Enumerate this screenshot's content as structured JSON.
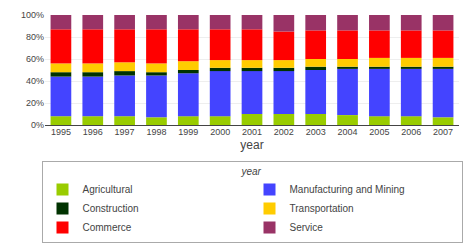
{
  "chart_data": {
    "type": "bar",
    "stacked": true,
    "xlabel": "year",
    "annotations": [
      {
        "text": "year"
      }
    ],
    "categories": [
      "1995",
      "1996",
      "1997",
      "1998",
      "1999",
      "2000",
      "2001",
      "2002",
      "2003",
      "2004",
      "2005",
      "2006",
      "2007"
    ],
    "series": [
      {
        "name": "Agricultural",
        "color": "#99cc00",
        "values": [
          8,
          8,
          8,
          7,
          8,
          8,
          10,
          10,
          10,
          9,
          8,
          8,
          7
        ]
      },
      {
        "name": "Manufacturing and Mining",
        "color": "#4444ff",
        "values": [
          36,
          36,
          37,
          38,
          39,
          41,
          39,
          39,
          40,
          42,
          43,
          43,
          44
        ]
      },
      {
        "name": "Construction",
        "color": "#003300",
        "values": [
          4,
          4,
          4,
          3,
          3,
          3,
          3,
          3,
          3,
          2,
          2,
          2,
          2
        ]
      },
      {
        "name": "Transportation",
        "color": "#ffcc00",
        "values": [
          8,
          8,
          8,
          8,
          8,
          7,
          7,
          7,
          7,
          7,
          8,
          8,
          8
        ]
      },
      {
        "name": "Commerce",
        "color": "#ff0000",
        "values": [
          31,
          31,
          30,
          31,
          29,
          28,
          28,
          26,
          26,
          26,
          25,
          25,
          25
        ]
      },
      {
        "name": "Service",
        "color": "#993366",
        "values": [
          13,
          13,
          13,
          13,
          13,
          13,
          13,
          15,
          14,
          14,
          14,
          14,
          14
        ]
      }
    ],
    "ylim": [
      0,
      100
    ],
    "yticks": [
      {
        "value": 0,
        "label": "0%"
      },
      {
        "value": 20,
        "label": "20%"
      },
      {
        "value": 40,
        "label": "40%"
      },
      {
        "value": 60,
        "label": "60%"
      },
      {
        "value": 80,
        "label": "80%"
      },
      {
        "value": 100,
        "label": "100%"
      }
    ],
    "grid": true,
    "legend": "bottom"
  }
}
